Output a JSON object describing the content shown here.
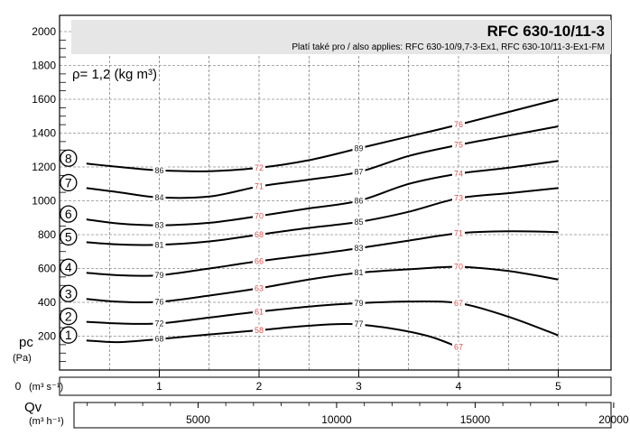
{
  "chart_data": {
    "type": "line",
    "title": "RFC 630-10/11-3",
    "subtitle": "Platí také pro / also applies: RFC 630-10/9,7-3-Ex1, RFC 630-10/11-3-Ex1-FM",
    "density_note": "ρ= 1,2 (kg m³)",
    "ylabel": "pc",
    "yunit": "(Pa)",
    "xlabel": "Qv",
    "x_unit_top": "(m³ s⁻¹)",
    "x_unit_bottom": "(m³ h⁻¹)",
    "ylim": [
      0,
      2000
    ],
    "yticks": [
      "200",
      "400",
      "600",
      "800",
      "1000",
      "1200",
      "1400",
      "1600",
      "1800",
      "2000"
    ],
    "xlim": [
      0,
      5.5
    ],
    "xticks_top": [
      "0",
      "1",
      "2",
      "3",
      "4",
      "5"
    ],
    "xticks_bottom": [
      "5000",
      "10000",
      "15000",
      "20000"
    ],
    "series": [
      {
        "name": "1",
        "points": [
          [
            0.27,
            175
          ],
          [
            0.6,
            165
          ],
          [
            1.0,
            183
          ],
          [
            1.5,
            210
          ],
          [
            2.0,
            235
          ],
          [
            2.5,
            262
          ],
          [
            2.9,
            272
          ],
          [
            3.3,
            248
          ],
          [
            3.7,
            200
          ],
          [
            4.0,
            135
          ]
        ],
        "labels": [
          {
            "x": 1.0,
            "y": 183,
            "text": "68",
            "type": "black"
          },
          {
            "x": 2.0,
            "y": 235,
            "text": "58",
            "type": "red"
          },
          {
            "x": 3.0,
            "y": 272,
            "text": "77",
            "type": "black"
          },
          {
            "x": 4.0,
            "y": 135,
            "text": "67",
            "type": "red"
          }
        ]
      },
      {
        "name": "2",
        "points": [
          [
            0.27,
            285
          ],
          [
            0.6,
            275
          ],
          [
            1.0,
            275
          ],
          [
            1.5,
            310
          ],
          [
            2.0,
            345
          ],
          [
            2.5,
            375
          ],
          [
            3.0,
            395
          ],
          [
            3.5,
            405
          ],
          [
            4.0,
            395
          ],
          [
            4.5,
            315
          ],
          [
            5.0,
            205
          ]
        ],
        "labels": [
          {
            "x": 1.0,
            "y": 275,
            "text": "72",
            "type": "black"
          },
          {
            "x": 2.0,
            "y": 345,
            "text": "61",
            "type": "red"
          },
          {
            "x": 3.0,
            "y": 395,
            "text": "79",
            "type": "black"
          },
          {
            "x": 4.0,
            "y": 395,
            "text": "67",
            "type": "red"
          }
        ]
      },
      {
        "name": "3",
        "points": [
          [
            0.27,
            420
          ],
          [
            0.6,
            403
          ],
          [
            1.0,
            403
          ],
          [
            1.5,
            440
          ],
          [
            2.0,
            483
          ],
          [
            2.5,
            535
          ],
          [
            3.0,
            575
          ],
          [
            3.5,
            595
          ],
          [
            4.0,
            610
          ],
          [
            4.5,
            585
          ],
          [
            5.0,
            535
          ]
        ],
        "labels": [
          {
            "x": 1.0,
            "y": 403,
            "text": "76",
            "type": "black"
          },
          {
            "x": 2.0,
            "y": 483,
            "text": "63",
            "type": "red"
          },
          {
            "x": 3.0,
            "y": 575,
            "text": "81",
            "type": "black"
          },
          {
            "x": 4.0,
            "y": 610,
            "text": "70",
            "type": "red"
          }
        ]
      },
      {
        "name": "4",
        "points": [
          [
            0.27,
            575
          ],
          [
            0.6,
            560
          ],
          [
            1.0,
            560
          ],
          [
            1.5,
            600
          ],
          [
            2.0,
            643
          ],
          [
            2.5,
            680
          ],
          [
            3.0,
            720
          ],
          [
            3.5,
            765
          ],
          [
            4.0,
            808
          ],
          [
            4.5,
            820
          ],
          [
            5.0,
            815
          ]
        ],
        "labels": [
          {
            "x": 1.0,
            "y": 560,
            "text": "79",
            "type": "black"
          },
          {
            "x": 2.0,
            "y": 643,
            "text": "66",
            "type": "red"
          },
          {
            "x": 3.0,
            "y": 720,
            "text": "83",
            "type": "black"
          },
          {
            "x": 4.0,
            "y": 808,
            "text": "71",
            "type": "red"
          }
        ]
      },
      {
        "name": "5",
        "points": [
          [
            0.27,
            755
          ],
          [
            0.6,
            742
          ],
          [
            1.0,
            740
          ],
          [
            1.5,
            760
          ],
          [
            2.0,
            800
          ],
          [
            2.5,
            840
          ],
          [
            3.0,
            875
          ],
          [
            3.5,
            935
          ],
          [
            4.0,
            1015
          ],
          [
            4.5,
            1045
          ],
          [
            5.0,
            1075
          ]
        ],
        "labels": [
          {
            "x": 1.0,
            "y": 740,
            "text": "81",
            "type": "black"
          },
          {
            "x": 2.0,
            "y": 800,
            "text": "68",
            "type": "red"
          },
          {
            "x": 3.0,
            "y": 875,
            "text": "85",
            "type": "black"
          },
          {
            "x": 4.0,
            "y": 1015,
            "text": "73",
            "type": "red"
          }
        ]
      },
      {
        "name": "6",
        "points": [
          [
            0.27,
            890
          ],
          [
            0.6,
            865
          ],
          [
            1.0,
            855
          ],
          [
            1.5,
            870
          ],
          [
            2.0,
            910
          ],
          [
            2.5,
            955
          ],
          [
            3.0,
            1000
          ],
          [
            3.5,
            1100
          ],
          [
            4.0,
            1160
          ],
          [
            4.5,
            1195
          ],
          [
            5.0,
            1235
          ]
        ],
        "labels": [
          {
            "x": 1.0,
            "y": 855,
            "text": "83",
            "type": "black"
          },
          {
            "x": 2.0,
            "y": 910,
            "text": "70",
            "type": "red"
          },
          {
            "x": 3.0,
            "y": 1000,
            "text": "86",
            "type": "black"
          },
          {
            "x": 4.0,
            "y": 1160,
            "text": "74",
            "type": "red"
          }
        ]
      },
      {
        "name": "7",
        "points": [
          [
            0.27,
            1075
          ],
          [
            0.6,
            1050
          ],
          [
            1.0,
            1020
          ],
          [
            1.5,
            1025
          ],
          [
            2.0,
            1085
          ],
          [
            2.5,
            1125
          ],
          [
            3.0,
            1170
          ],
          [
            3.5,
            1265
          ],
          [
            4.0,
            1330
          ],
          [
            4.5,
            1385
          ],
          [
            5.0,
            1440
          ]
        ],
        "labels": [
          {
            "x": 1.0,
            "y": 1020,
            "text": "84",
            "type": "black"
          },
          {
            "x": 2.0,
            "y": 1085,
            "text": "71",
            "type": "red"
          },
          {
            "x": 3.0,
            "y": 1170,
            "text": "87",
            "type": "black"
          },
          {
            "x": 4.0,
            "y": 1330,
            "text": "75",
            "type": "red"
          }
        ]
      },
      {
        "name": "8",
        "points": [
          [
            0.27,
            1220
          ],
          [
            0.6,
            1200
          ],
          [
            1.0,
            1180
          ],
          [
            1.5,
            1175
          ],
          [
            2.0,
            1195
          ],
          [
            2.5,
            1240
          ],
          [
            3.0,
            1310
          ],
          [
            3.5,
            1380
          ],
          [
            4.0,
            1450
          ],
          [
            4.5,
            1525
          ],
          [
            5.0,
            1600
          ]
        ],
        "labels": [
          {
            "x": 1.0,
            "y": 1180,
            "text": "86",
            "type": "black"
          },
          {
            "x": 2.0,
            "y": 1195,
            "text": "72",
            "type": "red"
          },
          {
            "x": 3.0,
            "y": 1310,
            "text": "89",
            "type": "black"
          },
          {
            "x": 4.0,
            "y": 1450,
            "text": "76",
            "type": "red"
          }
        ]
      }
    ],
    "label_colors": {
      "black": "#222222",
      "red": "#d9534f"
    },
    "grid": true
  }
}
